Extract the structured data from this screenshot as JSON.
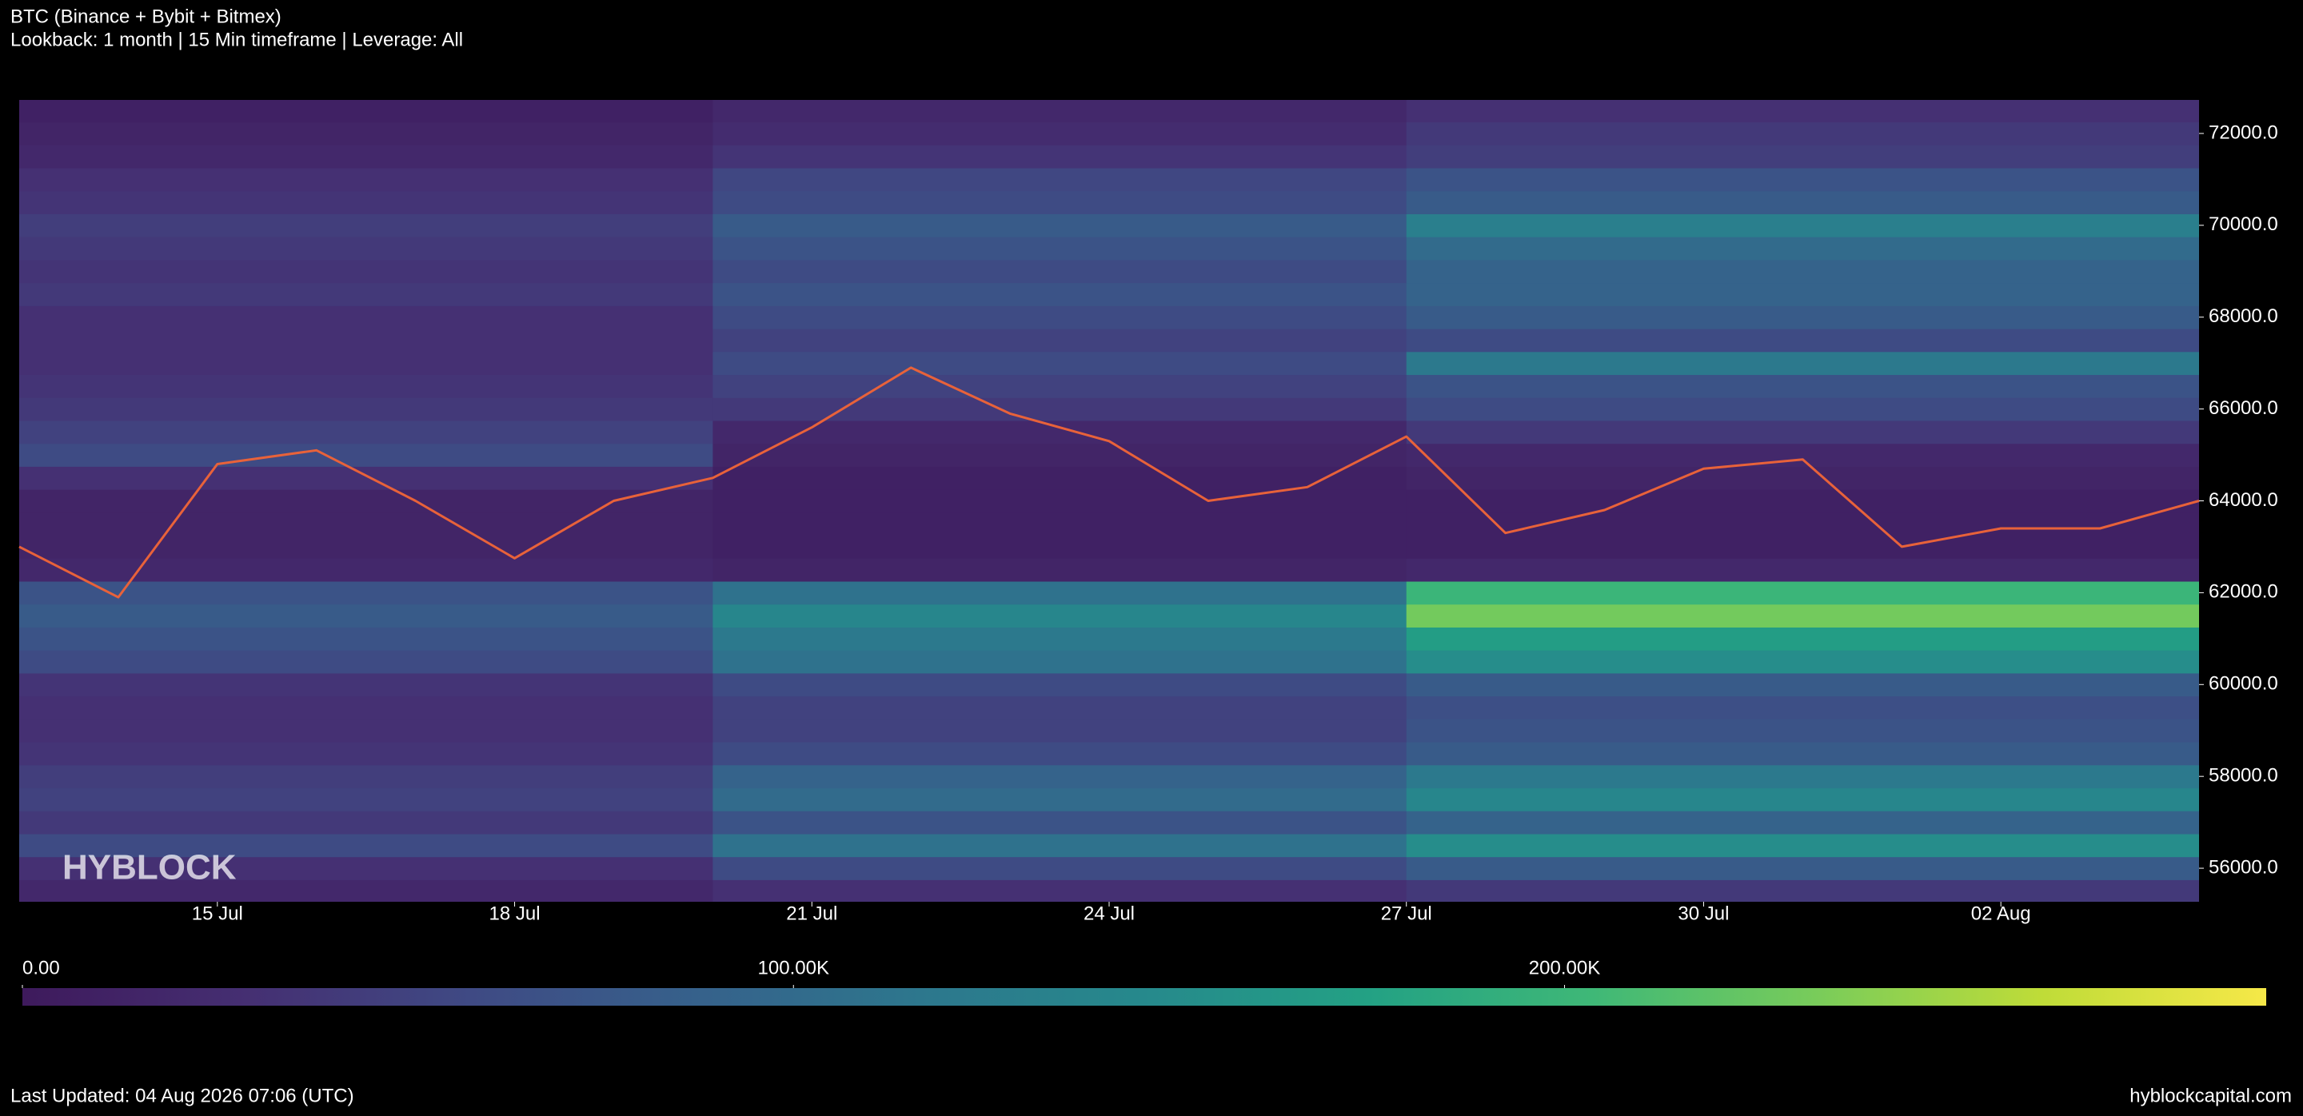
{
  "chart_data": {
    "type": "heatmap",
    "title": "BTC (Binance + Bybit + Bitmex)",
    "subtitle": "Lookback: 1 month | 15 Min timeframe | Leverage: All",
    "colormap": "viridis",
    "xlim": [
      "13 Jul",
      "04 Aug"
    ],
    "xticks": [
      "15 Jul",
      "18 Jul",
      "21 Jul",
      "24 Jul",
      "27 Jul",
      "30 Jul",
      "02 Aug"
    ],
    "ylim": [
      55270,
      72730
    ],
    "yticks": [
      {
        "value": 56000,
        "label": "56000.0"
      },
      {
        "value": 58000,
        "label": "58000.0"
      },
      {
        "value": 60000,
        "label": "60000.0"
      },
      {
        "value": 62000,
        "label": "62000.0"
      },
      {
        "value": 64000,
        "label": "64000.0"
      },
      {
        "value": 66000,
        "label": "66000.0"
      },
      {
        "value": 68000,
        "label": "68000.0"
      },
      {
        "value": 70000,
        "label": "70000.0"
      },
      {
        "value": 72000,
        "label": "72000.0"
      }
    ],
    "segments": [
      "13 Jul",
      "20 Jul",
      "27 Jul"
    ],
    "levels": [
      55500,
      56000,
      56500,
      57000,
      57500,
      58000,
      58500,
      59000,
      59500,
      60000,
      60500,
      61000,
      61500,
      62000,
      62500,
      63000,
      63500,
      64000,
      64500,
      65000,
      65500,
      66000,
      66500,
      67000,
      67500,
      68000,
      68500,
      69000,
      69500,
      70000,
      70500,
      71000,
      71500,
      72000,
      72500
    ],
    "z": [
      [
        20000,
        30000,
        40000
      ],
      [
        30000,
        60000,
        80000
      ],
      [
        60000,
        110000,
        150000
      ],
      [
        40000,
        70000,
        90000
      ],
      [
        50000,
        100000,
        140000
      ],
      [
        45000,
        90000,
        120000
      ],
      [
        35000,
        60000,
        80000
      ],
      [
        30000,
        50000,
        70000
      ],
      [
        30000,
        50000,
        65000
      ],
      [
        35000,
        60000,
        80000
      ],
      [
        60000,
        110000,
        150000
      ],
      [
        70000,
        120000,
        170000
      ],
      [
        80000,
        140000,
        230000
      ],
      [
        70000,
        110000,
        200000
      ],
      [
        20000,
        15000,
        20000
      ],
      [
        15000,
        10000,
        10000
      ],
      [
        15000,
        10000,
        10000
      ],
      [
        15000,
        10000,
        10000
      ],
      [
        30000,
        10000,
        15000
      ],
      [
        60000,
        15000,
        20000
      ],
      [
        50000,
        20000,
        40000
      ],
      [
        40000,
        40000,
        60000
      ],
      [
        35000,
        50000,
        70000
      ],
      [
        30000,
        60000,
        120000
      ],
      [
        30000,
        50000,
        60000
      ],
      [
        30000,
        60000,
        80000
      ],
      [
        40000,
        70000,
        90000
      ],
      [
        35000,
        60000,
        90000
      ],
      [
        40000,
        70000,
        100000
      ],
      [
        45000,
        80000,
        130000
      ],
      [
        35000,
        60000,
        80000
      ],
      [
        30000,
        55000,
        70000
      ],
      [
        20000,
        35000,
        45000
      ],
      [
        15000,
        25000,
        40000
      ],
      [
        10000,
        20000,
        30000
      ]
    ],
    "zlim": [
      0,
      291000
    ],
    "zticks": [
      {
        "value": 0,
        "label": "0.00"
      },
      {
        "value": 100000,
        "label": "100.00K"
      },
      {
        "value": 200000,
        "label": "200.00K"
      }
    ],
    "price": {
      "color": "#e8623a",
      "x": [
        "13 Jul",
        "14 Jul",
        "15 Jul",
        "16 Jul",
        "17 Jul",
        "18 Jul",
        "19 Jul",
        "20 Jul",
        "21 Jul",
        "22 Jul",
        "23 Jul",
        "24 Jul",
        "25 Jul",
        "26 Jul",
        "27 Jul",
        "28 Jul",
        "29 Jul",
        "30 Jul",
        "31 Jul",
        "01 Aug",
        "02 Aug",
        "03 Aug",
        "04 Aug"
      ],
      "values": [
        63000,
        61900,
        64800,
        65100,
        64000,
        62750,
        64000,
        64500,
        65600,
        66900,
        65900,
        65300,
        64000,
        64300,
        65400,
        63300,
        63800,
        64700,
        64900,
        63000,
        63400,
        63400,
        64000
      ]
    }
  },
  "watermark": "HYBLOCK",
  "footer": {
    "updated": "Last Updated: 04 Aug 2026 07:06 (UTC)",
    "site": "hyblockcapital.com"
  }
}
